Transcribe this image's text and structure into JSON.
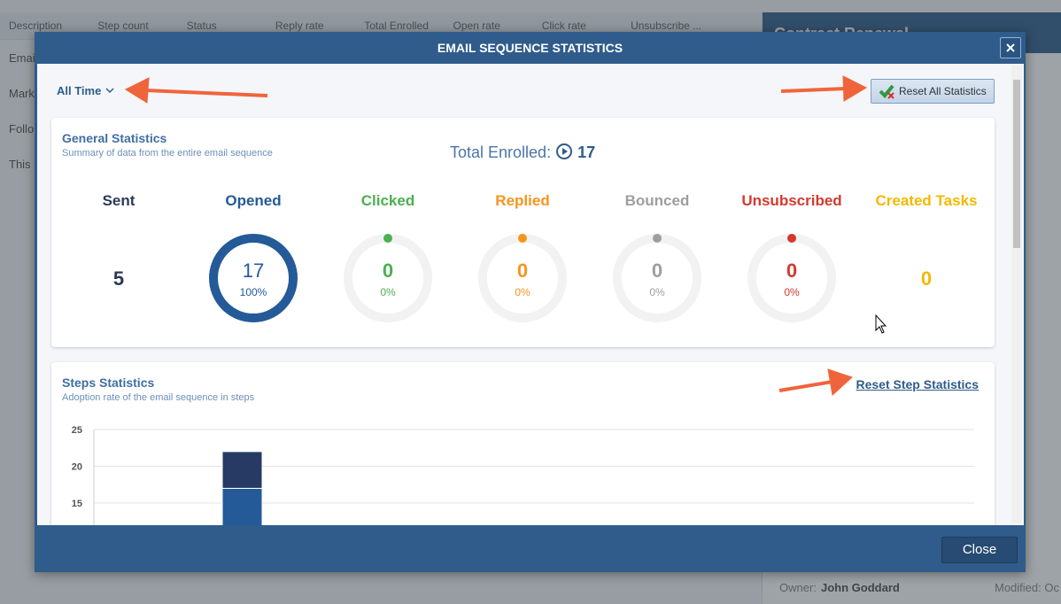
{
  "background": {
    "columns": [
      "Description",
      "Step count",
      "Status",
      "Reply rate",
      "Total Enrolled",
      "Open rate",
      "Click rate",
      "Unsubscribe ..."
    ],
    "rows": [
      "Emai",
      "Mark",
      "Follo",
      "This"
    ],
    "panel_title": "Contract Renewal",
    "owner_label": "Owner:",
    "owner": "John Goddard",
    "modified_label": "Modified: Oc"
  },
  "modal": {
    "title": "EMAIL SEQUENCE STATISTICS",
    "period": "All Time",
    "reset_all": "Reset All Statistics",
    "general": {
      "title": "General Statistics",
      "subtitle": "Summary of data from the entire email sequence",
      "total_label": "Total Enrolled:",
      "total": "17",
      "stats": [
        {
          "label": "Sent",
          "value": "5",
          "color": "#2b3a55"
        },
        {
          "label": "Opened",
          "value": "17",
          "percent": 100,
          "percent_label": "100%",
          "color": "#245a98"
        },
        {
          "label": "Clicked",
          "value": "0",
          "percent": 0,
          "percent_label": "0%",
          "color": "#4caf50"
        },
        {
          "label": "Replied",
          "value": "0",
          "percent": 0,
          "percent_label": "0%",
          "color": "#f7941d"
        },
        {
          "label": "Bounced",
          "value": "0",
          "percent": 0,
          "percent_label": "0%",
          "color": "#9e9e9e"
        },
        {
          "label": "Unsubscribed",
          "value": "0",
          "percent": 0,
          "percent_label": "0%",
          "color": "#d23a2e"
        },
        {
          "label": "Created Tasks",
          "value": "0",
          "color": "#f5b800"
        }
      ]
    },
    "steps": {
      "title": "Steps Statistics",
      "subtitle": "Adoption rate of the email sequence in steps",
      "reset": "Reset Step Statistics",
      "chart": {
        "type": "bar",
        "ylim": [
          0,
          25
        ],
        "yticks": [
          25,
          20,
          15
        ],
        "series": [
          {
            "color": "#245a98",
            "values": [
              17
            ]
          },
          {
            "color": "#263a63",
            "values": [
              5
            ]
          }
        ]
      }
    },
    "close": "Close"
  }
}
